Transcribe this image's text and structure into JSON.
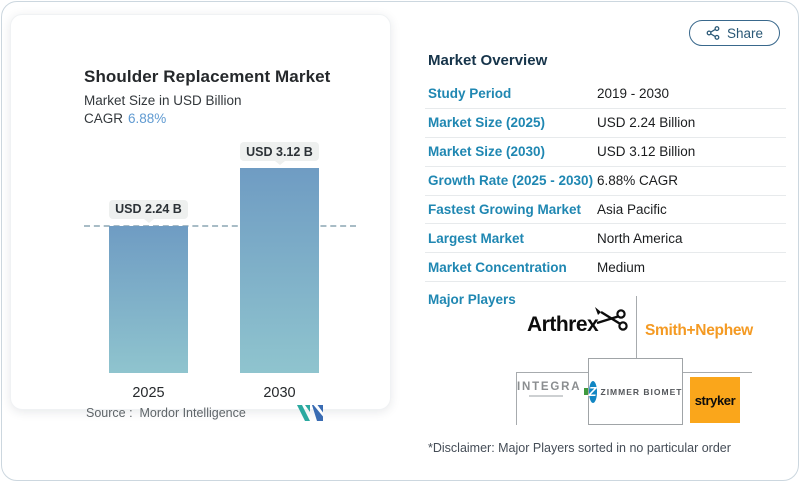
{
  "page": {
    "share_label": "Share"
  },
  "chart_card": {
    "title": "Shoulder Replacement Market",
    "subtitle": "Market Size in USD Billion",
    "cagr_label": "CAGR",
    "cagr_value": "6.88%",
    "source_label": "Source :",
    "source_brand": "Mordor Intelligence"
  },
  "chart_data": {
    "type": "bar",
    "categories": [
      "2025",
      "2030"
    ],
    "values": [
      2.24,
      3.12
    ],
    "bar_labels": [
      "USD 2.24 B",
      "USD 3.12 B"
    ],
    "title": "Shoulder Replacement Market",
    "ylabel": "Market Size in USD Billion",
    "reference_line": 2.24,
    "grid": false,
    "legend": false,
    "colors": {
      "bar_top": "#6f9cc3",
      "bar_bottom": "#8fc4ce"
    }
  },
  "overview": {
    "heading": "Market Overview",
    "rows": [
      {
        "label": "Study Period",
        "value": "2019 - 2030"
      },
      {
        "label": "Market Size (2025)",
        "value": "USD 2.24 Billion"
      },
      {
        "label": "Market Size (2030)",
        "value": "USD 3.12 Billion"
      },
      {
        "label": "Growth Rate (2025 - 2030)",
        "value": "6.88% CAGR"
      },
      {
        "label": "Fastest Growing Market",
        "value": "Asia Pacific"
      },
      {
        "label": "Largest Market",
        "value": "North America"
      },
      {
        "label": "Market Concentration",
        "value": "Medium"
      }
    ]
  },
  "players": {
    "heading": "Major Players",
    "arthrex": "Arthrex",
    "smith_nephew": "Smith+Nephew",
    "integra": "INTEGRA",
    "zimmer_biomet": "ZIMMER BIOMET",
    "stryker": "stryker",
    "disclaimer": "*Disclaimer: Major Players sorted in no particular order"
  }
}
